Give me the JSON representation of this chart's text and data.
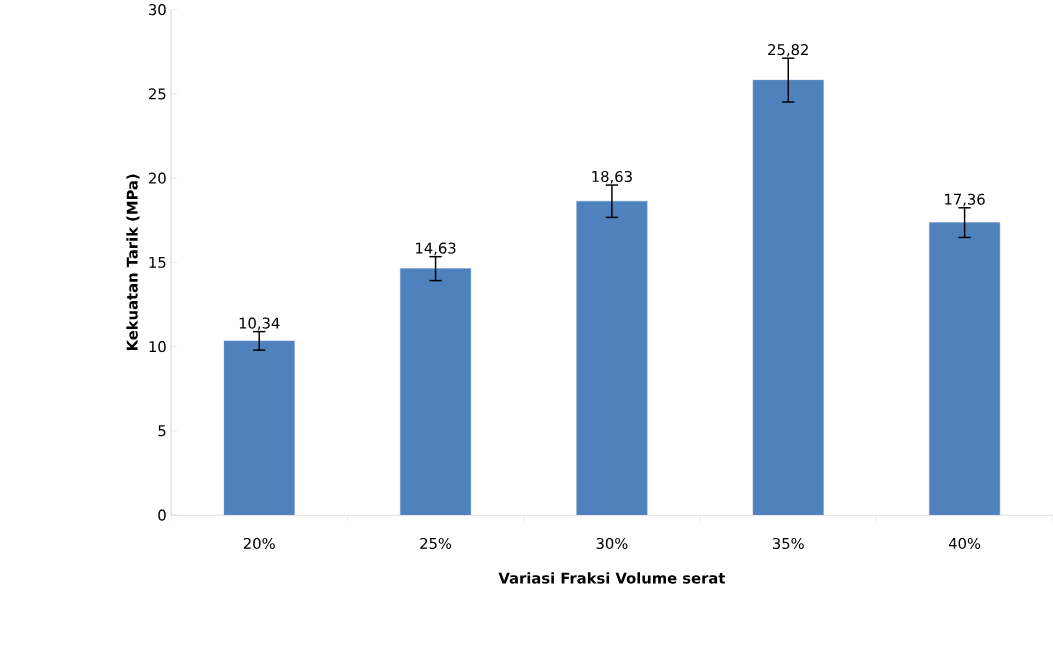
{
  "chart_data": {
    "type": "bar",
    "xlabel": "Variasi Fraksi Volume serat",
    "ylabel": "Kekuatan Tarik (MPa)",
    "categories": [
      "20%",
      "25%",
      "30%",
      "35%",
      "40%"
    ],
    "values": [
      10.34,
      14.63,
      18.63,
      25.82,
      17.36
    ],
    "errors": [
      0.55,
      0.71,
      0.96,
      1.3,
      0.88
    ],
    "value_labels": [
      "10,34",
      "14,63",
      "18,63",
      "25,82",
      "17,36"
    ],
    "color": "#4f81bd",
    "ylim": [
      0,
      30
    ],
    "yticks": [
      0,
      5,
      10,
      15,
      20,
      25,
      30
    ],
    "grid": false
  }
}
